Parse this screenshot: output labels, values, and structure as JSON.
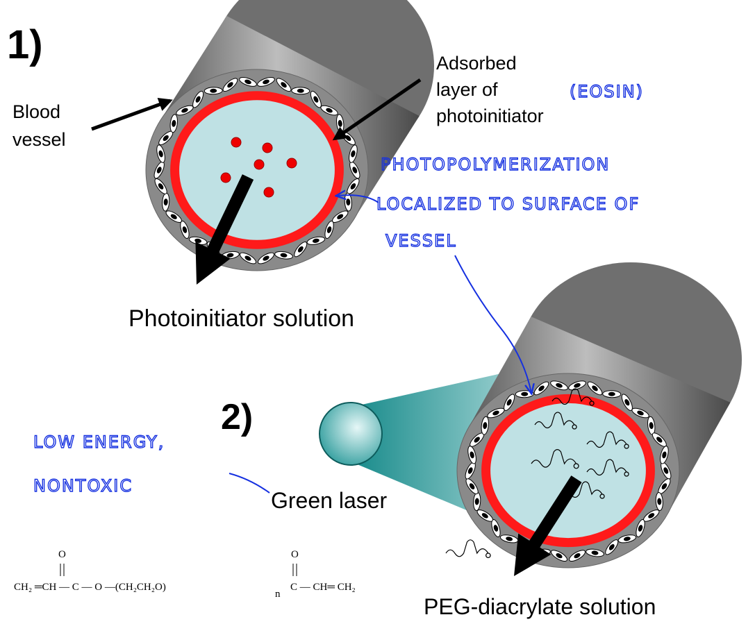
{
  "panel1": {
    "label": "1)",
    "blood_vessel": [
      "Blood",
      "vessel"
    ],
    "adsorbed_layer": [
      "Adsorbed",
      "layer of",
      "photoinitiator"
    ],
    "solution": "Photoinitiator solution"
  },
  "panel2": {
    "label": "2)",
    "laser": "Green laser",
    "solution": "PEG-diacrylate solution"
  },
  "annotations": {
    "eosin": "(EOSIN)",
    "photopolymerization": [
      "PHOTOPOLYMERIZATION",
      "LOCALIZED TO SURFACE OF",
      "VESSEL"
    ],
    "laser_note": [
      "LOW ENERGY,",
      "NONTOXIC"
    ]
  },
  "formula": {
    "main": "CH₂ ═CH — C — O —(CH₂CH₂O)",
    "repeat_index": "n",
    "end": "C — CH═ CH₂",
    "carbonyl": "O"
  }
}
